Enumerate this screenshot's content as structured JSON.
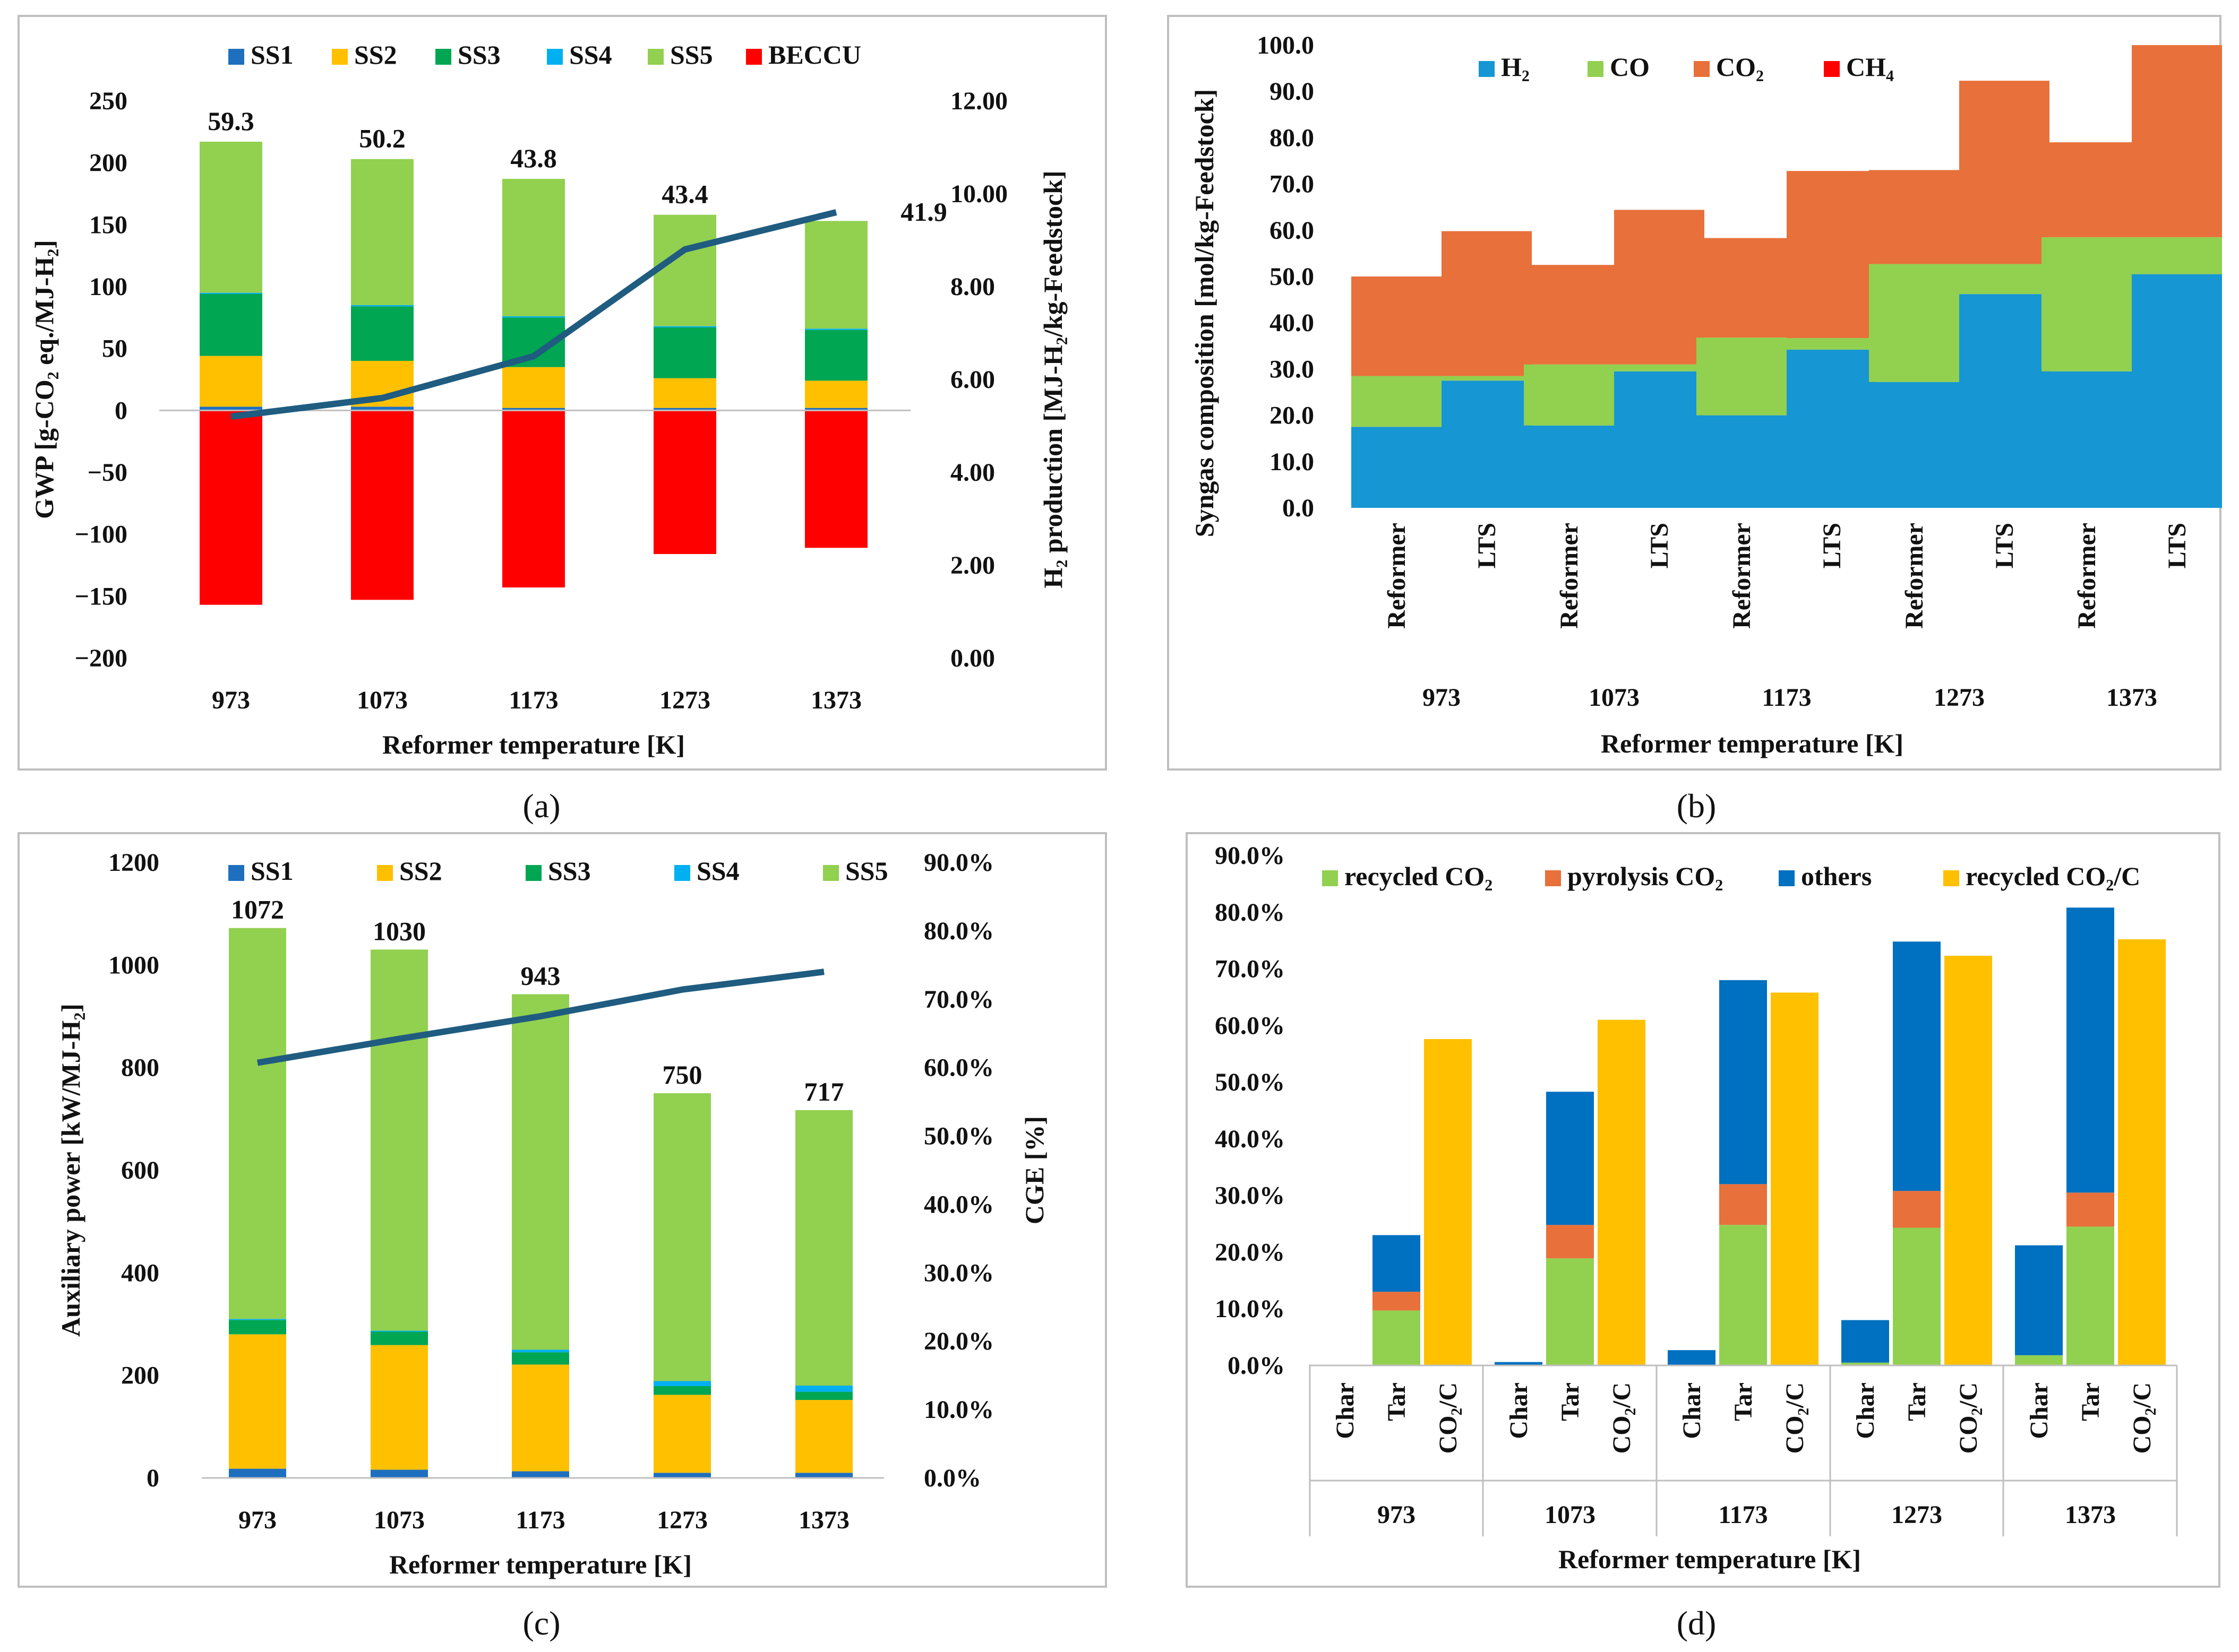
{
  "colors": {
    "SS1": "#1f6fbf",
    "SS2": "#ffc000",
    "SS3": "#00a651",
    "SS4": "#00b0f0",
    "SS5": "#92d050",
    "BECCU": "#ff0000",
    "H2": "#1696d2",
    "CO": "#92d050",
    "CO2": "#e8703a",
    "CH4": "#ff0000",
    "recycled": "#92d050",
    "pyrolysis": "#e8703a",
    "others": "#0070c0",
    "ratio": "#ffc000",
    "line": "#1f5c80"
  },
  "chart_data": [
    {
      "panel": "(a)",
      "type": "bar",
      "stacked": true,
      "categories": [
        "973",
        "1073",
        "1173",
        "1273",
        "1373"
      ],
      "xlabel": "Reformer temperature [K]",
      "ylabel": "GWP [g-CO₂ eq./MJ-H₂]",
      "y2label": "H₂ production [MJ-H₂/kg-Feedstock]",
      "ylim": [
        -200,
        250
      ],
      "yticks": [
        "250",
        "200",
        "150",
        "100",
        "50",
        "0",
        "−50",
        "−100",
        "−150",
        "−200"
      ],
      "y2lim": [
        0,
        12
      ],
      "y2ticks": [
        "12.00",
        "10.00",
        "8.00",
        "6.00",
        "4.00",
        "2.00",
        "0.00"
      ],
      "legend": [
        "SS1",
        "SS2",
        "SS3",
        "SS4",
        "SS5",
        "BECCU"
      ],
      "series": [
        {
          "name": "SS1",
          "values": [
            3,
            3,
            2,
            2,
            2
          ]
        },
        {
          "name": "SS2",
          "values": [
            41,
            37,
            33,
            24,
            22
          ]
        },
        {
          "name": "SS3",
          "values": [
            50,
            44,
            40,
            41,
            41
          ]
        },
        {
          "name": "SS4",
          "values": [
            1,
            1,
            1,
            1,
            1
          ]
        },
        {
          "name": "SS5",
          "values": [
            122,
            118,
            111,
            90,
            87
          ]
        },
        {
          "name": "BECCU",
          "values": [
            -157,
            -153,
            -143,
            -116,
            -111
          ]
        }
      ],
      "line": {
        "name": "H₂ production",
        "values": [
          5.2,
          5.6,
          6.5,
          8.8,
          9.6
        ]
      },
      "labels": [
        "59.3",
        "50.2",
        "43.8",
        "43.4",
        "41.9"
      ]
    },
    {
      "panel": "(b)",
      "type": "bar",
      "stacked": true,
      "groups": [
        "973",
        "1073",
        "1173",
        "1273",
        "1373"
      ],
      "subcategories": [
        "Reformer",
        "LTS"
      ],
      "xlabel": "Reformer temperature [K]",
      "ylabel": "Syngas composition [mol/kg-Feedstock]",
      "ylim": [
        0,
        100
      ],
      "yticks": [
        "100.0",
        "90.0",
        "80.0",
        "70.0",
        "60.0",
        "50.0",
        "40.0",
        "30.0",
        "20.0",
        "10.0",
        "0.0"
      ],
      "legend": [
        "H₂",
        "CO",
        "CO₂",
        "CH₄"
      ],
      "series": [
        {
          "name": "H₂",
          "values": [
            17.5,
            27.5,
            17.8,
            29.5,
            20,
            34.2,
            27.2,
            46.2,
            29.5,
            50.5
          ]
        },
        {
          "name": "CO",
          "values": [
            11,
            1,
            13.2,
            1.5,
            16.8,
            2.5,
            25.5,
            6.5,
            29,
            8
          ]
        },
        {
          "name": "CO₂",
          "values": [
            21.5,
            31.3,
            21.5,
            33.4,
            21.5,
            36.1,
            20.3,
            39.6,
            20.5,
            41.5
          ]
        },
        {
          "name": "CH₄",
          "values": [
            0,
            0,
            0,
            0,
            0,
            0,
            0,
            0,
            0,
            0
          ]
        }
      ]
    },
    {
      "panel": "(c)",
      "type": "bar",
      "stacked": true,
      "categories": [
        "973",
        "1073",
        "1173",
        "1273",
        "1373"
      ],
      "xlabel": "Reformer temperature [K]",
      "ylabel": "Auxiliary power [kW/MJ-H₂]",
      "y2label": "CGE [%]",
      "ylim": [
        0,
        1200
      ],
      "yticks": [
        "1200",
        "1000",
        "800",
        "600",
        "400",
        "200",
        "0"
      ],
      "y2lim": [
        0,
        90
      ],
      "y2ticks": [
        "90.0%",
        "80.0%",
        "70.0%",
        "60.0%",
        "50.0%",
        "40.0%",
        "30.0%",
        "20.0%",
        "10.0%",
        "0.0%"
      ],
      "legend": [
        "SS1",
        "SS2",
        "SS3",
        "SS4",
        "SS5"
      ],
      "series": [
        {
          "name": "SS1",
          "values": [
            18,
            16,
            13,
            10,
            10
          ]
        },
        {
          "name": "SS2",
          "values": [
            262,
            243,
            208,
            152,
            142
          ]
        },
        {
          "name": "SS3",
          "values": [
            28,
            26,
            24,
            17,
            16
          ]
        },
        {
          "name": "SS4",
          "values": [
            2,
            2,
            5,
            10,
            12
          ]
        },
        {
          "name": "SS5",
          "values": [
            762,
            743,
            693,
            561,
            537
          ]
        }
      ],
      "line": {
        "name": "CGE",
        "values": [
          60.7,
          64.2,
          67.5,
          71.4,
          74.0
        ]
      },
      "labels": [
        "1072",
        "1030",
        "943",
        "750",
        "717"
      ]
    },
    {
      "panel": "(d)",
      "type": "bar",
      "stacked": true,
      "groups": [
        "973",
        "1073",
        "1173",
        "1273",
        "1373"
      ],
      "subcategories": [
        "Char",
        "Tar",
        "CO₂/C"
      ],
      "xlabel": "Reformer temperature [K]",
      "ylim": [
        0,
        90
      ],
      "yticks": [
        "90.0%",
        "80.0%",
        "70.0%",
        "60.0%",
        "50.0%",
        "40.0%",
        "30.0%",
        "20.0%",
        "10.0%",
        "0.0%"
      ],
      "legend": [
        "recycled CO₂",
        "pyrolysis CO₂",
        "others",
        "recycled CO₂/C"
      ],
      "series": [
        {
          "name": "recycled CO₂",
          "values": [
            0,
            9.7,
            0,
            0,
            18.9,
            0,
            0,
            24.8,
            0,
            0.5,
            24.3,
            0,
            1.8,
            24.5,
            0
          ]
        },
        {
          "name": "pyrolysis CO₂",
          "values": [
            0,
            3.3,
            0,
            0,
            5.9,
            0,
            0,
            7.2,
            0,
            0,
            6.5,
            0,
            0,
            6.0,
            0
          ]
        },
        {
          "name": "others",
          "values": [
            0,
            10,
            0,
            0.6,
            23.5,
            0,
            2.7,
            36.0,
            0,
            7.5,
            44.0,
            0,
            19.4,
            50.3,
            0
          ]
        },
        {
          "name": "recycled CO₂/C",
          "values": [
            0,
            0,
            57.6,
            0,
            0,
            61.0,
            0,
            0,
            65.8,
            0,
            0,
            72.3,
            0,
            0,
            75.2
          ]
        }
      ]
    }
  ],
  "panel_letters": {
    "a": "(a)",
    "b": "(b)",
    "c": "(c)",
    "d": "(d)"
  }
}
